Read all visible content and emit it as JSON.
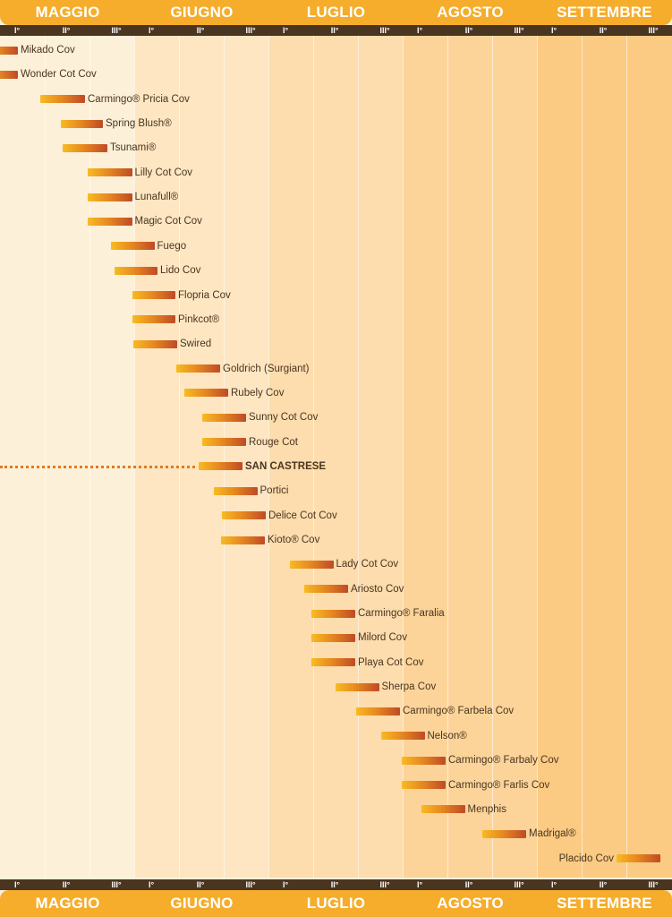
{
  "chart_data": {
    "type": "gantt",
    "title": "",
    "months": [
      "MAGGIO",
      "GIUGNO",
      "LUGLIO",
      "AGOSTO",
      "SETTEMBRE"
    ],
    "decades": [
      "I°",
      "II°",
      "III°"
    ],
    "x_unit": "decade index (0 = I° Maggio, 15 = end of III° Settembre)",
    "xlim": [
      0,
      15
    ],
    "highlight": "SAN CASTRESE",
    "band_colors": [
      "#fdf0d8",
      "#fde6c1",
      "#fddcad",
      "#fcd499",
      "#fbca83"
    ],
    "bar_gradient": [
      "#f8bb22",
      "#e78a20",
      "#bf4a26"
    ],
    "varieties": [
      {
        "name": "Mikado Cov",
        "start": -0.4,
        "end": 0.4
      },
      {
        "name": "Wonder Cot Cov",
        "start": -0.4,
        "end": 0.4
      },
      {
        "name": "Carmingo® Pricia Cov",
        "start": 0.9,
        "end": 1.9
      },
      {
        "name": "Spring Blush®",
        "start": 1.35,
        "end": 2.3
      },
      {
        "name": "Tsunami®",
        "start": 1.4,
        "end": 2.4
      },
      {
        "name": "Lilly Cot Cov",
        "start": 1.95,
        "end": 2.95
      },
      {
        "name": "Lunafull®",
        "start": 1.95,
        "end": 2.95
      },
      {
        "name": "Magic Cot Cov",
        "start": 1.95,
        "end": 2.95
      },
      {
        "name": "Fuego",
        "start": 2.48,
        "end": 3.45
      },
      {
        "name": "Lido Cov",
        "start": 2.55,
        "end": 3.52
      },
      {
        "name": "Flopria Cov",
        "start": 2.95,
        "end": 3.92
      },
      {
        "name": "Pinkcot®",
        "start": 2.95,
        "end": 3.92
      },
      {
        "name": "Swired",
        "start": 2.98,
        "end": 3.96
      },
      {
        "name": "Goldrich (Surgiant)",
        "start": 3.94,
        "end": 4.92
      },
      {
        "name": "Rubely Cov",
        "start": 4.12,
        "end": 5.1
      },
      {
        "name": "Sunny Cot Cov",
        "start": 4.52,
        "end": 5.5
      },
      {
        "name": "Rouge Cot",
        "start": 4.52,
        "end": 5.5
      },
      {
        "name": "SAN CASTRESE",
        "start": 4.44,
        "end": 5.42
      },
      {
        "name": "Portici",
        "start": 4.77,
        "end": 5.75
      },
      {
        "name": "Delice Cot Cov",
        "start": 4.96,
        "end": 5.94
      },
      {
        "name": "Kioto® Cov",
        "start": 4.94,
        "end": 5.92
      },
      {
        "name": "Lady Cot Cov",
        "start": 6.47,
        "end": 7.45
      },
      {
        "name": "Ariosto Cov",
        "start": 6.8,
        "end": 7.78
      },
      {
        "name": "Carmingo® Faralia",
        "start": 6.96,
        "end": 7.94
      },
      {
        "name": "Milord Cov",
        "start": 6.96,
        "end": 7.94
      },
      {
        "name": "Playa Cot Cov",
        "start": 6.96,
        "end": 7.94
      },
      {
        "name": "Sherpa Cov",
        "start": 7.49,
        "end": 8.47
      },
      {
        "name": "Carmingo® Farbela Cov",
        "start": 7.96,
        "end": 8.94
      },
      {
        "name": "Nelson®",
        "start": 8.51,
        "end": 9.49
      },
      {
        "name": "Carmingo® Farbaly Cov",
        "start": 8.98,
        "end": 9.96
      },
      {
        "name": "Carmingo® Farlis Cov",
        "start": 8.98,
        "end": 9.96
      },
      {
        "name": "Menphis",
        "start": 9.41,
        "end": 10.39
      },
      {
        "name": "Madrigal®",
        "start": 10.78,
        "end": 11.76
      },
      {
        "name": "Placido Cov",
        "start": 13.78,
        "end": 14.76
      }
    ]
  }
}
